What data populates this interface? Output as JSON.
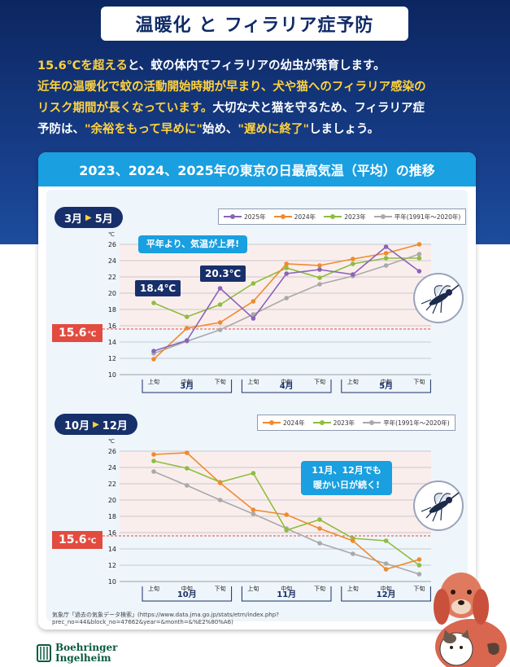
{
  "title": "温暖化 と フィラリア症予防",
  "intro": {
    "line1_highlight": "15.6℃を超える",
    "line1_rest": "と、蚊の体内でフィラリアの幼虫が発育します。",
    "line2_highlight": "近年の温暖化で蚊の活動開始時期が早まり、犬や猫へのフィラリア感染の",
    "line3_highlight": "リスク期間が長くなっています。",
    "line3_rest": "大切な犬と猫を守るため、フィラリア症",
    "line4_a": "予防は、",
    "line4_b": "\"余裕をもって早めに\"",
    "line4_c": "始め、",
    "line4_d": "\"遅めに終了\"",
    "line4_e": "しましょう。"
  },
  "panel": {
    "header": "2023、2024、2025年の東京の日最高気温（平均）の推移"
  },
  "threshold_label": "15.6",
  "threshold_unit": "℃",
  "spring": {
    "period_from": "3月",
    "period_to": "5月",
    "callout": "平年より、気温が上昇!",
    "label_a": "18.4℃",
    "label_b": "20.3℃",
    "legend": [
      "2025年",
      "2024年",
      "2023年",
      "平年(1991年〜2020年)"
    ]
  },
  "autumn": {
    "period_from": "10月",
    "period_to": "12月",
    "callout_line1": "11月、12月でも",
    "callout_line2": "暖かい日が続く!",
    "legend": [
      "2024年",
      "2023年",
      "平年(1991年〜2020年)"
    ]
  },
  "source": "気象庁「過去の気象データ検索」(https://www.data.jma.go.jp/stats/etrn/index.php?prec_no=44&block_no=47662&year=&month=&%E2%80%A6)",
  "logo": {
    "line1": "Boehringer",
    "line2": "Ingelheim"
  },
  "colors": {
    "y2025": "#8a63b8",
    "y2024": "#f08a2e",
    "y2023": "#8fbd3e",
    "normal": "#a9a9a9",
    "threshold": "#e24b3f"
  },
  "chart_data": [
    {
      "type": "line",
      "title": "3月 ▸ 5月",
      "ylabel": "℃",
      "ylim": [
        10,
        26
      ],
      "yticks": [
        10,
        12,
        14,
        16,
        18,
        20,
        22,
        24,
        26
      ],
      "sub_categories": [
        "上旬",
        "中旬",
        "下旬",
        "上旬",
        "中旬",
        "下旬",
        "上旬",
        "中旬",
        "下旬"
      ],
      "months": [
        "3月",
        "4月",
        "5月"
      ],
      "threshold": 15.6,
      "series": [
        {
          "name": "2025年",
          "color": "#8a63b8",
          "values": [
            12.9,
            14.2,
            20.6,
            16.9,
            22.4,
            22.9,
            22.3,
            25.7,
            22.7
          ]
        },
        {
          "name": "2024年",
          "color": "#f08a2e",
          "values": [
            11.9,
            15.7,
            16.4,
            19.0,
            23.6,
            23.4,
            24.2,
            24.9,
            26.0
          ]
        },
        {
          "name": "2023年",
          "color": "#8fbd3e",
          "values": [
            18.8,
            17.1,
            18.6,
            21.2,
            23.1,
            21.9,
            23.6,
            24.3,
            24.3
          ]
        },
        {
          "name": "平年(1991年〜2020年)",
          "color": "#a9a9a9",
          "values": [
            12.6,
            14.1,
            15.5,
            17.4,
            19.4,
            21.1,
            22.1,
            23.4,
            24.8
          ]
        }
      ]
    },
    {
      "type": "line",
      "title": "10月 ▸ 12月",
      "ylabel": "℃",
      "ylim": [
        10,
        26
      ],
      "yticks": [
        10,
        12,
        14,
        16,
        18,
        20,
        22,
        24,
        26
      ],
      "sub_categories": [
        "上旬",
        "中旬",
        "下旬",
        "上旬",
        "中旬",
        "下旬",
        "上旬",
        "中旬",
        "下旬"
      ],
      "months": [
        "10月",
        "11月",
        "12月"
      ],
      "threshold": 15.6,
      "series": [
        {
          "name": "2024年",
          "color": "#f08a2e",
          "values": [
            25.6,
            25.8,
            22.1,
            18.8,
            18.2,
            16.5,
            15.0,
            11.5,
            12.7
          ]
        },
        {
          "name": "2023年",
          "color": "#8fbd3e",
          "values": [
            24.8,
            23.9,
            22.2,
            23.3,
            16.3,
            17.6,
            15.3,
            15.0,
            12.0
          ]
        },
        {
          "name": "平年(1991年〜2020年)",
          "color": "#a9a9a9",
          "values": [
            23.5,
            21.8,
            20.0,
            18.3,
            16.5,
            14.7,
            13.4,
            12.2,
            10.9
          ]
        }
      ]
    }
  ]
}
